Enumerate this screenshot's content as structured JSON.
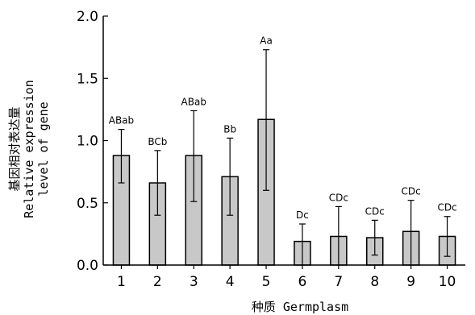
{
  "chart_data": {
    "type": "bar",
    "categories": [
      "1",
      "2",
      "3",
      "4",
      "5",
      "6",
      "7",
      "8",
      "9",
      "10"
    ],
    "values": [
      0.88,
      0.66,
      0.88,
      0.71,
      1.17,
      0.19,
      0.23,
      0.22,
      0.27,
      0.23
    ],
    "error_upper": [
      1.09,
      0.92,
      1.24,
      1.02,
      1.73,
      0.33,
      0.47,
      0.36,
      0.52,
      0.39
    ],
    "error_lower": [
      0.66,
      0.4,
      0.51,
      0.4,
      0.6,
      0.0,
      0.0,
      0.08,
      0.0,
      0.07
    ],
    "significance_labels": [
      "ABab",
      "BCb",
      "ABab",
      "Bb",
      "Aa",
      "Dc",
      "CDc",
      "CDc",
      "CDc",
      "CDc"
    ],
    "xlabel": "种质 Germplasm",
    "ylabel_lines": [
      "基因相对表达量",
      "Relative expression",
      "level of gene"
    ],
    "ylim": [
      0,
      2.0
    ],
    "yticks": [
      "0.0",
      "0.5",
      "1.0",
      "1.5",
      "2.0"
    ],
    "bar_color": "#c8c8c8",
    "grid": false,
    "legend": "none"
  }
}
